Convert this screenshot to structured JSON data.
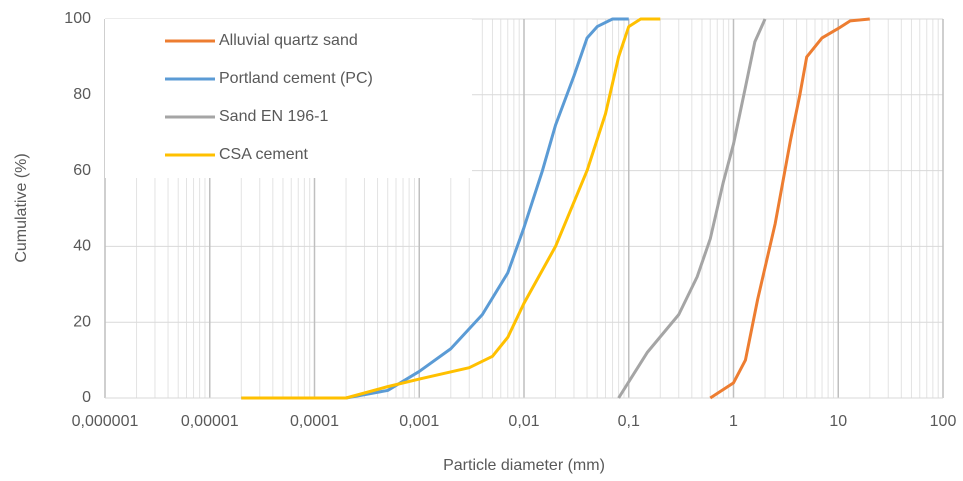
{
  "chart_data": {
    "type": "line",
    "xlabel": "Particle diameter (mm)",
    "ylabel": "Cumulative (%)",
    "xscale": "log",
    "grid": true,
    "minor_grid": true,
    "legend": "upper left",
    "xlim": [
      1e-06,
      100
    ],
    "ylim": [
      0,
      100
    ],
    "xticks": [
      {
        "value": 1e-06,
        "label": "0,000001"
      },
      {
        "value": 1e-05,
        "label": "0,00001"
      },
      {
        "value": 0.0001,
        "label": "0,0001"
      },
      {
        "value": 0.001,
        "label": "0,001"
      },
      {
        "value": 0.01,
        "label": "0,01"
      },
      {
        "value": 0.1,
        "label": "0,1"
      },
      1,
      10,
      100
    ],
    "yticks": [
      0,
      20,
      40,
      60,
      80,
      100
    ],
    "series": [
      {
        "name": "Alluvial quartz sand",
        "color": "#ed7d31",
        "x": [
          0.6,
          1,
          1.3,
          1.7,
          2.5,
          3.5,
          4.3,
          5,
          7,
          10,
          13,
          20
        ],
        "values": [
          0,
          4,
          10,
          26,
          46,
          68,
          80,
          90,
          95,
          97.5,
          99.5,
          100
        ]
      },
      {
        "name": "Portland cement (PC)",
        "color": "#5b9bd5",
        "x": [
          2e-05,
          0.0002,
          0.0005,
          0.001,
          0.002,
          0.004,
          0.007,
          0.01,
          0.015,
          0.02,
          0.03,
          0.04,
          0.05,
          0.07,
          0.1
        ],
        "values": [
          0,
          0,
          2,
          7,
          13,
          22,
          33,
          45,
          60,
          72,
          85,
          95,
          98,
          100,
          100
        ]
      },
      {
        "name": "Sand EN 196-1",
        "color": "#a5a5a5",
        "x": [
          0.08,
          0.15,
          0.3,
          0.45,
          0.6,
          0.8,
          1,
          1.3,
          1.6,
          2
        ],
        "values": [
          0,
          12,
          22,
          32,
          42,
          57,
          67,
          82,
          94,
          100
        ]
      },
      {
        "name": "CSA cement",
        "color": "#ffc000",
        "x": [
          2e-05,
          0.0002,
          0.0005,
          0.001,
          0.003,
          0.005,
          0.007,
          0.01,
          0.02,
          0.04,
          0.06,
          0.08,
          0.1,
          0.13,
          0.2
        ],
        "values": [
          0,
          0,
          3,
          5,
          8,
          11,
          16,
          25,
          40,
          60,
          75,
          90,
          98,
          100,
          100
        ]
      }
    ]
  }
}
